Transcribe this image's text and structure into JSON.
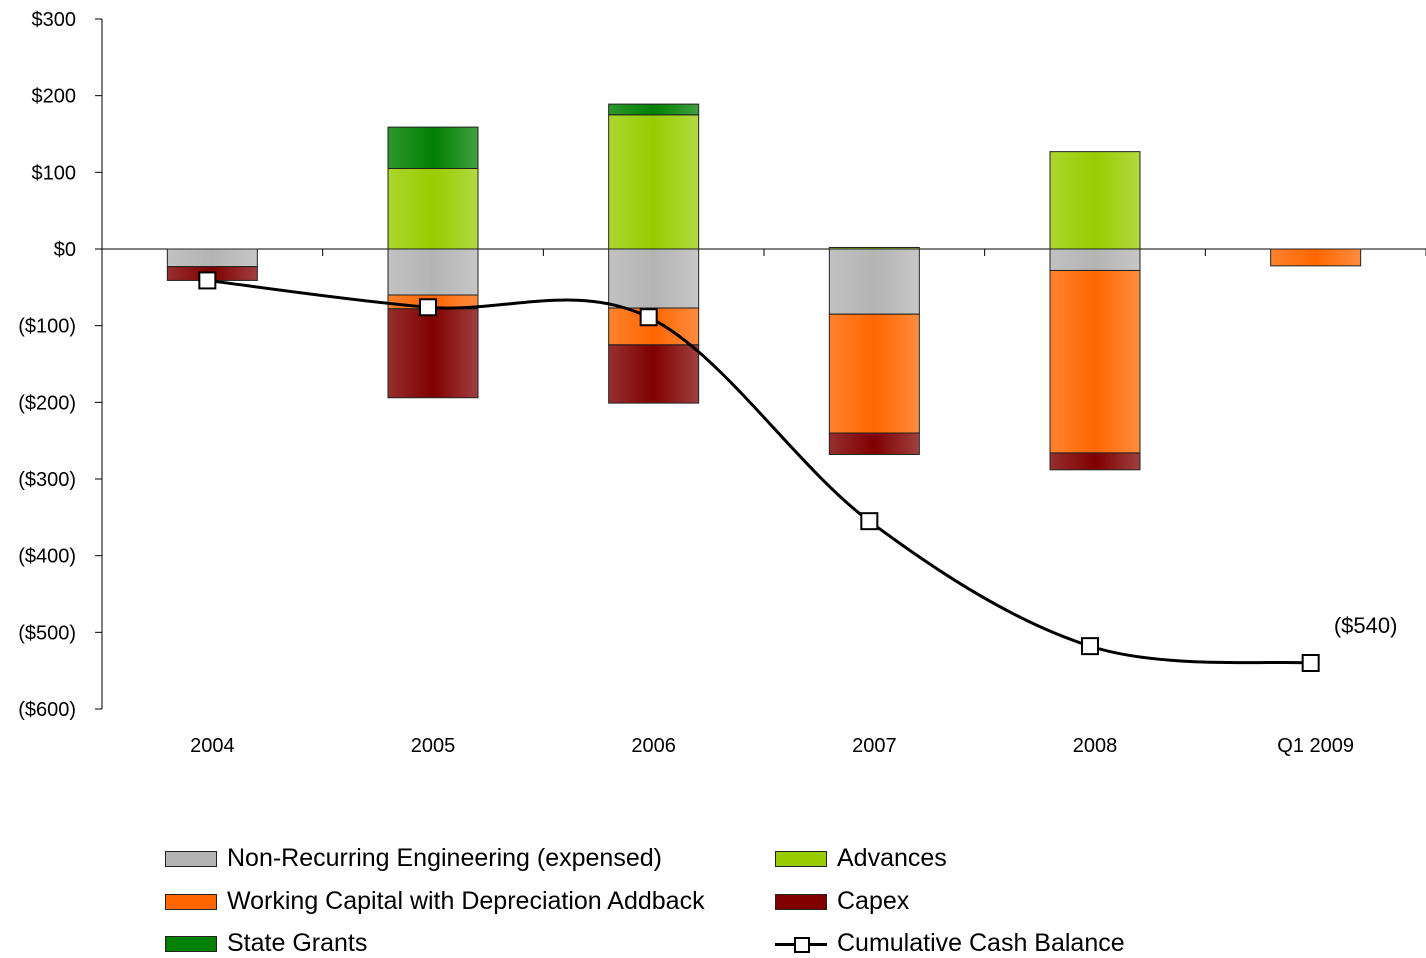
{
  "chart_data": {
    "type": "bar",
    "stacked": true,
    "categories": [
      "2004",
      "2005",
      "2006",
      "2007",
      "2008",
      "Q1 2009"
    ],
    "ylim": [
      -600,
      300
    ],
    "yticks": [
      300,
      200,
      100,
      0,
      -100,
      -200,
      -300,
      -400,
      -500,
      -600
    ],
    "ytick_labels": [
      "$300",
      "$200",
      "$100",
      "$0",
      "($100)",
      "($200)",
      "($300)",
      "($400)",
      "($500)",
      "($600)"
    ],
    "grid": false,
    "legend_position": "bottom",
    "series": [
      {
        "name": "Non-Recurring Engineering (expensed)",
        "color": "#b4b4b4",
        "values": [
          -23,
          -60,
          -77,
          -85,
          -28,
          0
        ]
      },
      {
        "name": "Working Capital with Depreciation Addback",
        "color": "#ff6600",
        "values": [
          0,
          -18,
          -48,
          -155,
          -238,
          -22
        ]
      },
      {
        "name": "Capex",
        "color": "#800000",
        "values": [
          -18,
          -116,
          -76,
          -28,
          -22,
          0
        ]
      },
      {
        "name": "Advances",
        "color": "#99cc00",
        "values": [
          0,
          105,
          175,
          2,
          127,
          0
        ]
      },
      {
        "name": "State Grants",
        "color": "#008000",
        "values": [
          0,
          54,
          14,
          0,
          0,
          0
        ]
      }
    ],
    "line_series": {
      "name": "Cumulative Cash Balance",
      "color": "#000000",
      "values": [
        -41,
        -76,
        -89,
        -355,
        -518,
        -540
      ]
    },
    "annotations": [
      {
        "text": "($540)",
        "category": "Q1 2009",
        "value": -540
      }
    ]
  }
}
